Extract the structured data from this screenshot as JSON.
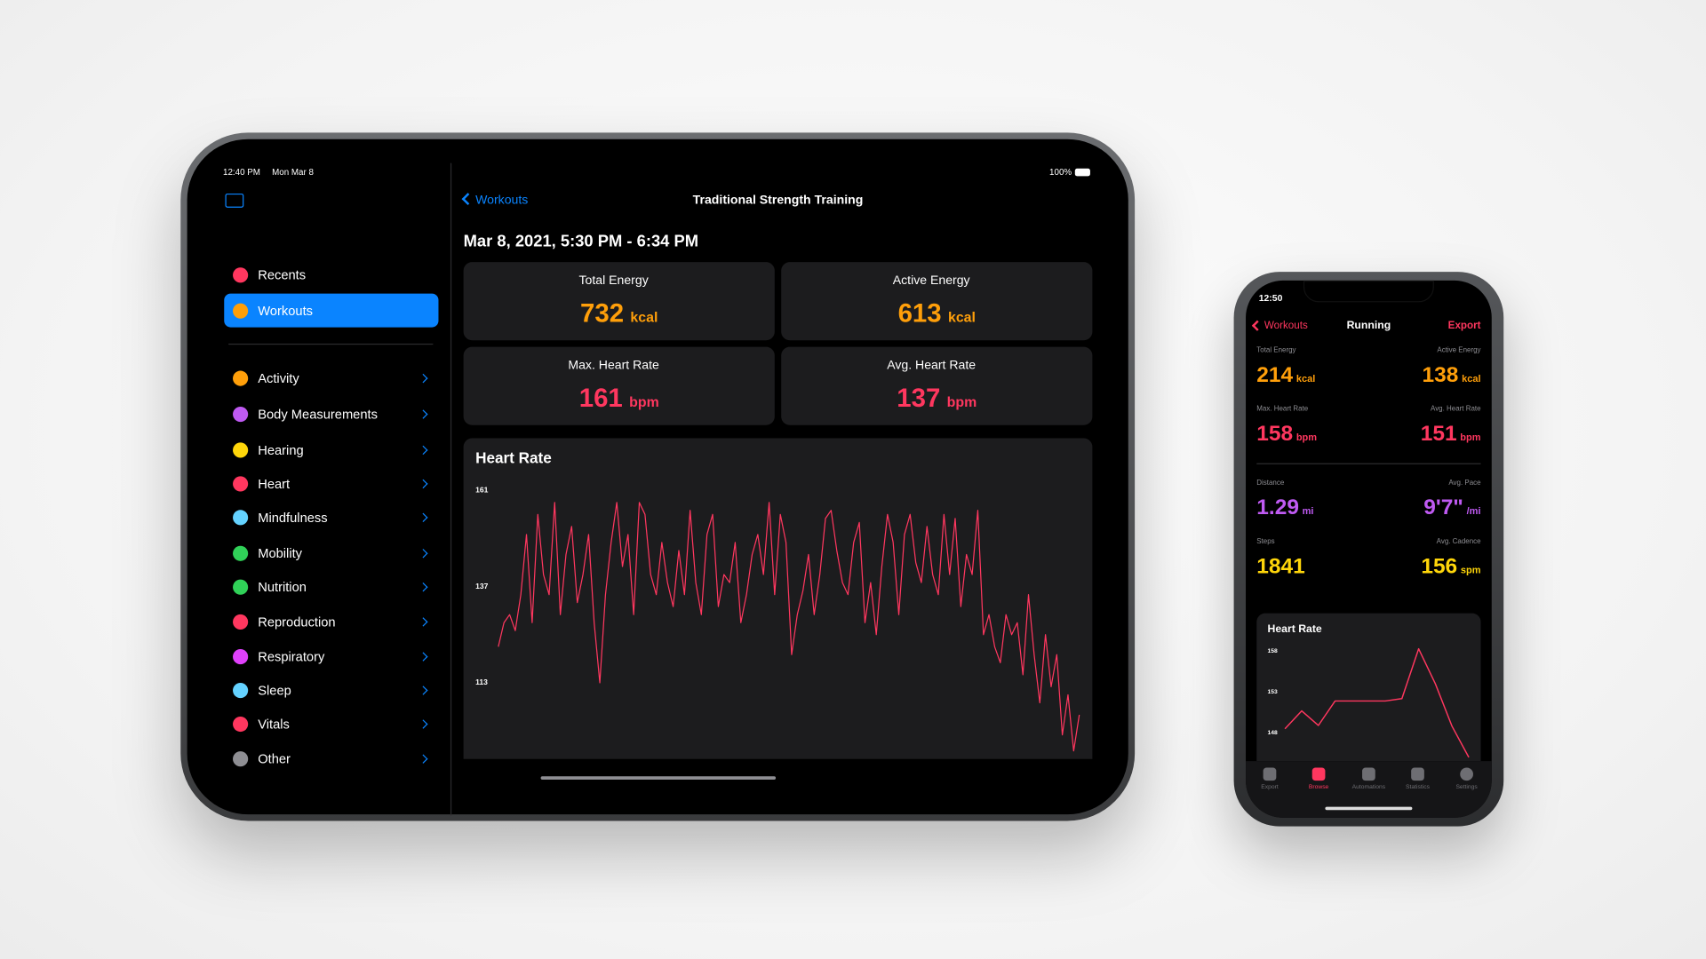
{
  "ipad": {
    "status_time": "12:40 PM",
    "status_date": "Mon Mar 8",
    "battery": "100%",
    "sidebar": [
      "Recents",
      "Workouts",
      "Activity",
      "Body Measurements",
      "Hearing",
      "Heart",
      "Mindfulness",
      "Mobility",
      "Nutrition",
      "Reproduction",
      "Respiratory",
      "Sleep",
      "Vitals",
      "Other"
    ],
    "back": "Workouts",
    "title": "Traditional Strength Training",
    "date_range": "Mar 8, 2021, 5:30 PM - 6:34 PM",
    "stats": [
      {
        "label": "Total Energy",
        "value": 732,
        "unit": "kcal",
        "color": "#ff9f0a"
      },
      {
        "label": "Active Energy",
        "value": 613,
        "unit": "kcal",
        "color": "#ff9f0a"
      },
      {
        "label": "Max. Heart Rate",
        "value": 161,
        "unit": "bpm",
        "color": "#ff375f"
      },
      {
        "label": "Avg. Heart Rate",
        "value": 137,
        "unit": "bpm",
        "color": "#ff375f"
      }
    ]
  },
  "iphone": {
    "status_time": "12:50",
    "back": "Workouts",
    "title": "Running",
    "action": "Export",
    "stats": [
      {
        "label": "Total Energy",
        "value": 214,
        "unit": "kcal",
        "color": "#ff9f0a"
      },
      {
        "label": "Active Energy",
        "value": 138,
        "unit": "kcal",
        "color": "#ff9f0a"
      },
      {
        "label": "Max. Heart Rate",
        "value": 158,
        "unit": "bpm",
        "color": "#ff375f"
      },
      {
        "label": "Avg. Heart Rate",
        "value": 151,
        "unit": "bpm",
        "color": "#ff375f"
      },
      {
        "label": "Distance",
        "value": 1.29,
        "unit": "mi",
        "color": "#bf5af2"
      },
      {
        "label": "Avg. Pace",
        "value": "9'7\"",
        "unit": "/mi",
        "color": "#bf5af2"
      },
      {
        "label": "Steps",
        "value": 1841,
        "color": "#ffd60a"
      },
      {
        "label": "Avg. Cadence",
        "value": 156,
        "unit": "spm",
        "color": "#ffd60a"
      }
    ],
    "tabs": [
      "Export",
      "Browse",
      "Automations",
      "Statistics",
      "Settings"
    ]
  },
  "chart_data": [
    {
      "type": "line",
      "title": "Heart Rate",
      "color": "#ff375f",
      "ylim": [
        94,
        161
      ],
      "yticks": [
        161,
        137,
        113
      ],
      "values": [
        122,
        128,
        130,
        126,
        135,
        150,
        128,
        155,
        140,
        135,
        158,
        130,
        145,
        152,
        133,
        140,
        150,
        128,
        113,
        135,
        148,
        158,
        142,
        150,
        130,
        158,
        155,
        140,
        135,
        148,
        138,
        132,
        146,
        135,
        156,
        138,
        130,
        150,
        155,
        132,
        140,
        138,
        148,
        128,
        135,
        145,
        150,
        140,
        158,
        135,
        155,
        148,
        120,
        130,
        136,
        145,
        130,
        140,
        154,
        156,
        146,
        138,
        135,
        148,
        153,
        128,
        138,
        125,
        142,
        155,
        148,
        130,
        150,
        155,
        143,
        138,
        152,
        140,
        135,
        155,
        140,
        154,
        132,
        145,
        140,
        156,
        125,
        130,
        122,
        118,
        130,
        125,
        128,
        115,
        135,
        120,
        108,
        125,
        112,
        120,
        100,
        110,
        96,
        105
      ]
    },
    {
      "type": "line",
      "title": "Heart Rate",
      "color": "#ff375f",
      "ylim": [
        145,
        159
      ],
      "yticks": [
        158,
        153,
        148
      ],
      "values": [
        148.5,
        150.7,
        148.9,
        151.9,
        151.9,
        151.9,
        151.9,
        152.2,
        158.3,
        154,
        148.8,
        145
      ]
    }
  ]
}
